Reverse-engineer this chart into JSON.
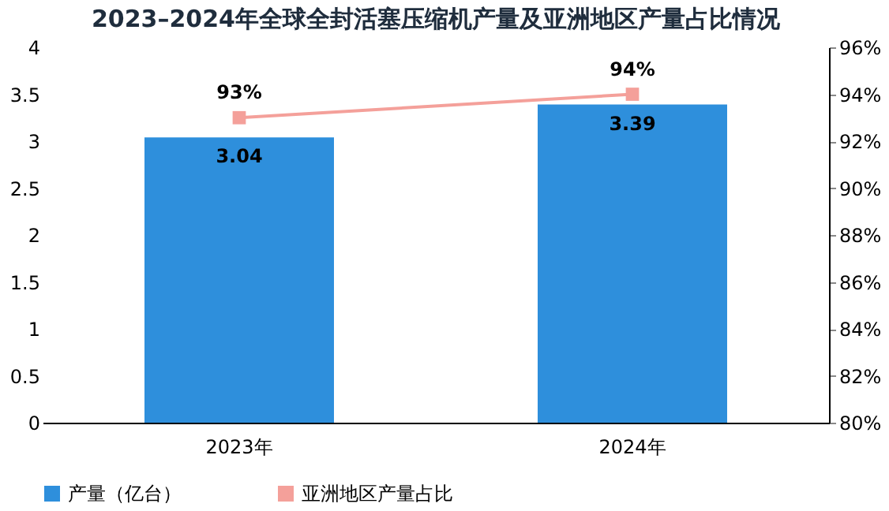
{
  "chart_data": {
    "type": "bar",
    "title": "2023–2024年全球全封活塞压缩机产量及亚洲地区产量占比情况",
    "categories": [
      "2023年",
      "2024年"
    ],
    "series": [
      {
        "name": "产量（亿台）",
        "color": "#2e8fdc",
        "values": [
          3.04,
          3.39
        ]
      },
      {
        "name": "亚洲地区产量占比",
        "color": "#f4a09a",
        "values": [
          93,
          94
        ],
        "type": "line",
        "axis": "y2",
        "value_labels": [
          "93%",
          "94%"
        ]
      }
    ],
    "ylim": [
      0,
      4
    ],
    "yticks": [
      0,
      0.5,
      1,
      1.5,
      2,
      2.5,
      3,
      3.5,
      4
    ],
    "y2lim": [
      80,
      96
    ],
    "y2ticks": [
      {
        "value": 80,
        "label": "80%"
      },
      {
        "value": 82,
        "label": "82%"
      },
      {
        "value": 84,
        "label": "84%"
      },
      {
        "value": 86,
        "label": "86%"
      },
      {
        "value": 88,
        "label": "88%"
      },
      {
        "value": 90,
        "label": "90%"
      },
      {
        "value": 92,
        "label": "92%"
      },
      {
        "value": 94,
        "label": "94%"
      },
      {
        "value": 96,
        "label": "96%"
      }
    ],
    "marker": "square",
    "legend": "bottom",
    "data_labels": true
  }
}
